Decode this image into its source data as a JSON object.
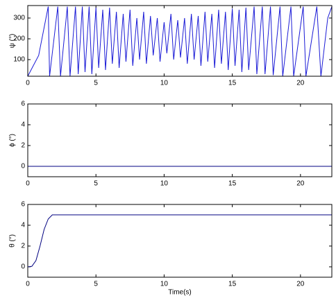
{
  "chart_data": [
    {
      "type": "line",
      "ylabel": "ψ (°)",
      "xlim": [
        0,
        22.3
      ],
      "xticks": [
        0,
        5,
        10,
        15,
        20
      ],
      "ylim": [
        20,
        360
      ],
      "yticks": [
        100,
        200,
        300
      ],
      "series": [
        {
          "color": "#1a1ad6",
          "x": [
            0,
            0.8,
            1.5,
            1.6,
            2.2,
            2.4,
            2.9,
            3.1,
            3.5,
            3.7,
            4.0,
            4.2,
            4.5,
            4.7,
            5.0,
            5.2,
            5.5,
            5.7,
            6.0,
            6.2,
            6.5,
            6.7,
            7.0,
            7.2,
            7.5,
            7.7,
            8.0,
            8.2,
            8.5,
            8.7,
            9.0,
            9.2,
            9.5,
            9.7,
            10.0,
            10.2,
            10.5,
            10.7,
            11.0,
            11.2,
            11.5,
            11.7,
            12.0,
            12.2,
            12.5,
            12.7,
            13.0,
            13.2,
            13.5,
            13.7,
            14.0,
            14.2,
            14.5,
            14.7,
            15.0,
            15.2,
            15.5,
            15.7,
            16.0,
            16.2,
            16.6,
            16.8,
            17.2,
            17.4,
            17.8,
            18.0,
            18.5,
            18.7,
            19.3,
            19.5,
            20.2,
            20.4,
            21.2,
            21.5,
            22.0,
            22.3
          ],
          "values": [
            20,
            120,
            355,
            20,
            355,
            20,
            355,
            20,
            355,
            30,
            355,
            40,
            355,
            30,
            350,
            60,
            340,
            50,
            350,
            80,
            330,
            60,
            320,
            90,
            340,
            70,
            300,
            100,
            330,
            80,
            310,
            120,
            300,
            90,
            280,
            130,
            320,
            100,
            290,
            110,
            300,
            80,
            320,
            100,
            310,
            70,
            330,
            90,
            320,
            60,
            340,
            80,
            330,
            50,
            345,
            70,
            340,
            40,
            350,
            50,
            355,
            30,
            355,
            30,
            355,
            25,
            355,
            20,
            355,
            20,
            355,
            20,
            355,
            20,
            300,
            355
          ]
        }
      ]
    },
    {
      "type": "line",
      "ylabel": "ϕ (°)",
      "xlim": [
        0,
        22.3
      ],
      "xticks": [
        0,
        5,
        10,
        15,
        20
      ],
      "ylim": [
        -1,
        6
      ],
      "yticks": [
        0,
        2,
        4,
        6
      ],
      "series": [
        {
          "color": "#000080",
          "x": [
            0,
            22.3
          ],
          "values": [
            0,
            0
          ]
        }
      ]
    },
    {
      "type": "line",
      "ylabel": "θ (°)",
      "xlabel": "Time(s)",
      "xlim": [
        0,
        22.3
      ],
      "xticks": [
        0,
        5,
        10,
        15,
        20
      ],
      "ylim": [
        -1,
        6
      ],
      "yticks": [
        0,
        2,
        4,
        6
      ],
      "series": [
        {
          "color": "#000080",
          "x": [
            0,
            0.3,
            0.6,
            0.9,
            1.2,
            1.5,
            1.8,
            2.2,
            22.3
          ],
          "values": [
            0,
            0.05,
            0.6,
            2,
            3.6,
            4.6,
            5,
            5,
            5
          ]
        }
      ]
    }
  ]
}
